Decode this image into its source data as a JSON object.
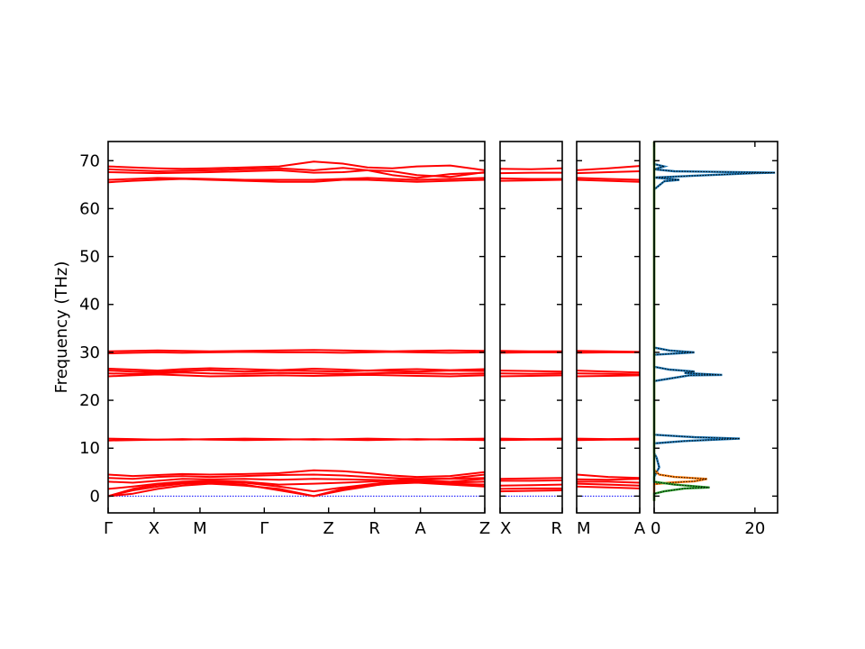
{
  "chart_data": {
    "type": "line",
    "subtype": "phonon band structure with density of states",
    "ylabel": "Frequency (THz)",
    "ylim": [
      -3.5,
      74
    ],
    "yticks": [
      0,
      10,
      20,
      30,
      40,
      50,
      60,
      70
    ],
    "grid": false,
    "band_color": "#ff0000",
    "zero_line_color": "#0000ff",
    "panels": [
      {
        "id": "p1",
        "xlabels": [
          "Γ",
          "X",
          "M",
          "Γ",
          "Z",
          "R",
          "A",
          "Z"
        ],
        "segment_lengths": [
          1,
          1,
          1.4,
          1.4,
          1,
          1,
          1.4
        ],
        "bands": [
          [
            0,
            0.5,
            1.5,
            2.2,
            2.6,
            2.2,
            1.5,
            0,
            1.5,
            2.2,
            2.6,
            2.8,
            2.4,
            2
          ],
          [
            0,
            1.2,
            2.0,
            2.6,
            2.8,
            2.4,
            1.2,
            0,
            1.2,
            2.0,
            2.8,
            3.0,
            2.6,
            2.4
          ],
          [
            0,
            1.5,
            2.4,
            2.8,
            3.0,
            2.8,
            2.0,
            1.0,
            1.8,
            2.4,
            3.0,
            3.2,
            2.8,
            3
          ],
          [
            1.5,
            2.0,
            2.6,
            3.0,
            3.2,
            3.0,
            2.4,
            2.6,
            2.8,
            3.0,
            3.2,
            3.3,
            3.0,
            3.6
          ],
          [
            3.0,
            2.8,
            3.2,
            3.6,
            3.5,
            3.6,
            3.4,
            3.6,
            3.5,
            3.4,
            3.3,
            3.5,
            3.6,
            3.8
          ],
          [
            3.8,
            3.6,
            4.0,
            4.2,
            4.0,
            4.2,
            4.4,
            4.5,
            4.3,
            4.0,
            3.8,
            3.6,
            3.7,
            4.5
          ],
          [
            4.5,
            4.2,
            4.4,
            4.6,
            4.5,
            4.6,
            4.8,
            5.4,
            5.2,
            4.8,
            4.3,
            4.0,
            4.2,
            5
          ],
          [
            11.6,
            11.7,
            11.8,
            11.9,
            11.8,
            11.7,
            11.8,
            11.9,
            11.8,
            11.7,
            11.8,
            11.9,
            11.8,
            11.7
          ],
          [
            12.0,
            11.9,
            11.8,
            11.8,
            11.9,
            12.0,
            11.9,
            11.8,
            11.9,
            12.0,
            11.9,
            11.8,
            11.9,
            12
          ],
          [
            25.0,
            25.2,
            25.4,
            25.2,
            25.0,
            25.1,
            25.2,
            25.1,
            25.2,
            25.3,
            25.2,
            25.1,
            25.0,
            25.2
          ],
          [
            25.6,
            25.5,
            25.6,
            25.8,
            25.6,
            25.5,
            25.7,
            25.6,
            25.5,
            25.6,
            25.7,
            25.6,
            25.5,
            25.6
          ],
          [
            26.2,
            26.0,
            25.9,
            26.1,
            26.3,
            26.0,
            26.2,
            26.1,
            26.0,
            26.2,
            26.1,
            26.0,
            26.2,
            26.1
          ],
          [
            26.6,
            26.4,
            26.2,
            26.5,
            26.7,
            26.5,
            26.3,
            26.6,
            26.4,
            26.2,
            26.4,
            26.5,
            26.3,
            26.5
          ],
          [
            29.8,
            29.9,
            30.0,
            29.9,
            30.0,
            30.1,
            30.0,
            30.0,
            29.9,
            30.0,
            30.1,
            30.0,
            29.9,
            30
          ],
          [
            30.2,
            30.3,
            30.4,
            30.3,
            30.2,
            30.3,
            30.4,
            30.5,
            30.4,
            30.3,
            30.2,
            30.3,
            30.4,
            30.3
          ],
          [
            65.5,
            65.8,
            66.0,
            66.2,
            66.0,
            65.8,
            65.6,
            65.6,
            66.0,
            66.0,
            65.8,
            65.6,
            65.8,
            66
          ],
          [
            66.0,
            66.2,
            66.4,
            66.3,
            66.2,
            66.0,
            66.0,
            66.0,
            66.2,
            66.4,
            66.2,
            66.0,
            66.2,
            66.4
          ],
          [
            67.6,
            67.5,
            67.4,
            67.5,
            67.6,
            67.8,
            68.0,
            67.5,
            67.6,
            68.0,
            67.0,
            66.4,
            67.2,
            67.5
          ],
          [
            68.2,
            68.0,
            67.8,
            67.9,
            68.0,
            68.2,
            68.4,
            68.0,
            68.5,
            68.0,
            67.8,
            67.0,
            66.6,
            67.6
          ],
          [
            68.8,
            68.6,
            68.4,
            68.3,
            68.4,
            68.6,
            68.8,
            69.8,
            69.4,
            68.6,
            68.4,
            68.8,
            69.0,
            68
          ]
        ]
      },
      {
        "id": "p2",
        "xlabels": [
          "X",
          "R"
        ],
        "segment_lengths": [
          1
        ],
        "bands": [
          [
            1.0,
            1.1,
            1.2
          ],
          [
            1.5,
            1.6,
            1.6
          ],
          [
            2.2,
            2.3,
            2.4
          ],
          [
            3.2,
            3.2,
            3.3
          ],
          [
            3.6,
            3.7,
            3.8
          ],
          [
            11.7,
            11.8,
            11.8
          ],
          [
            12.0,
            11.9,
            12.0
          ],
          [
            25.0,
            25.1,
            25.2
          ],
          [
            25.6,
            25.5,
            25.6
          ],
          [
            26.2,
            26.1,
            26.0
          ],
          [
            29.9,
            30.0,
            30.0
          ],
          [
            30.3,
            30.2,
            30.2
          ],
          [
            65.8,
            65.9,
            66.0
          ],
          [
            66.3,
            66.2,
            66.2
          ],
          [
            67.4,
            67.5,
            67.5
          ],
          [
            68.3,
            68.2,
            68.4
          ]
        ]
      },
      {
        "id": "p3",
        "xlabels": [
          "M",
          "A"
        ],
        "segment_lengths": [
          1
        ],
        "bands": [
          [
            2.0,
            1.8,
            1.6
          ],
          [
            2.6,
            2.4,
            2.2
          ],
          [
            3.0,
            3.0,
            2.8
          ],
          [
            3.5,
            3.4,
            3.6
          ],
          [
            4.5,
            4.0,
            3.8
          ],
          [
            11.7,
            11.8,
            11.8
          ],
          [
            12.0,
            11.9,
            12.0
          ],
          [
            25.0,
            25.1,
            25.2
          ],
          [
            25.6,
            25.5,
            25.4
          ],
          [
            26.2,
            26.0,
            25.8
          ],
          [
            29.9,
            30.0,
            30.0
          ],
          [
            30.3,
            30.2,
            30.1
          ],
          [
            66.0,
            65.8,
            65.6
          ],
          [
            66.4,
            66.2,
            66.0
          ],
          [
            67.4,
            67.6,
            67.8
          ],
          [
            68.0,
            68.4,
            68.9
          ]
        ]
      }
    ],
    "dos": {
      "xlim": [
        0,
        24.5
      ],
      "xticks": [
        0,
        20
      ],
      "series": [
        {
          "color": "#1f77b4",
          "points": [
            [
              0,
              -1
            ],
            [
              0,
              4
            ],
            [
              0.5,
              5
            ],
            [
              1,
              6
            ],
            [
              0.5,
              8
            ],
            [
              0,
              9
            ],
            [
              0,
              10
            ],
            [
              0,
              11
            ],
            [
              6,
              11.5
            ],
            [
              17,
              12
            ],
            [
              8,
              12.3
            ],
            [
              0,
              12.8
            ],
            [
              0,
              24
            ],
            [
              7,
              25.2
            ],
            [
              13.5,
              25.3
            ],
            [
              6,
              25.7
            ],
            [
              8,
              26
            ],
            [
              3,
              26.4
            ],
            [
              0,
              27
            ],
            [
              0,
              29.5
            ],
            [
              8,
              30
            ],
            [
              3,
              30.4
            ],
            [
              0,
              31
            ],
            [
              0,
              64
            ],
            [
              2,
              65.7
            ],
            [
              5,
              66
            ],
            [
              0,
              66.5
            ],
            [
              20,
              67.4
            ],
            [
              24,
              67.5
            ],
            [
              4,
              67.8
            ],
            [
              0,
              68.2
            ],
            [
              2,
              68.8
            ],
            [
              0,
              69.3
            ],
            [
              0,
              74
            ]
          ]
        },
        {
          "color": "#ff7f0e",
          "points": [
            [
              0,
              -1
            ],
            [
              0,
              2.5
            ],
            [
              3,
              2.8
            ],
            [
              8,
              3.1
            ],
            [
              10.5,
              3.6
            ],
            [
              4,
              4.0
            ],
            [
              1,
              4.5
            ],
            [
              0,
              5.5
            ],
            [
              0,
              74
            ]
          ]
        },
        {
          "color": "#2ca02c",
          "points": [
            [
              0,
              -1
            ],
            [
              0,
              0.5
            ],
            [
              2,
              1.0
            ],
            [
              6,
              1.6
            ],
            [
              11,
              1.8
            ],
            [
              4,
              2.4
            ],
            [
              0,
              3.0
            ],
            [
              0,
              74
            ]
          ]
        }
      ]
    }
  }
}
